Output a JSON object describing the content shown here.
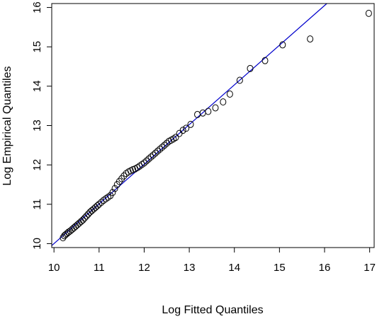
{
  "chart_data": {
    "type": "scatter",
    "title": "",
    "xlabel": "Log Fitted Quantiles",
    "ylabel": "Log Empirical Quantiles",
    "xlim": [
      9.95,
      17.1
    ],
    "ylim": [
      9.9,
      16.1
    ],
    "x_ticks": [
      10,
      11,
      12,
      13,
      14,
      15,
      16,
      17
    ],
    "y_ticks": [
      10,
      11,
      12,
      13,
      14,
      15,
      16
    ],
    "grid": false,
    "legend": "none",
    "reference_line": {
      "x": [
        9.95,
        16.05
      ],
      "y": [
        9.95,
        16.1
      ],
      "color": "#0000cc"
    },
    "point_color": "#000000",
    "points": [
      [
        10.2,
        10.15
      ],
      [
        10.23,
        10.2
      ],
      [
        10.26,
        10.23
      ],
      [
        10.29,
        10.26
      ],
      [
        10.32,
        10.29
      ],
      [
        10.36,
        10.32
      ],
      [
        10.4,
        10.36
      ],
      [
        10.44,
        10.4
      ],
      [
        10.48,
        10.44
      ],
      [
        10.52,
        10.48
      ],
      [
        10.56,
        10.52
      ],
      [
        10.6,
        10.56
      ],
      [
        10.64,
        10.6
      ],
      [
        10.68,
        10.65
      ],
      [
        10.72,
        10.7
      ],
      [
        10.76,
        10.75
      ],
      [
        10.8,
        10.8
      ],
      [
        10.84,
        10.84
      ],
      [
        10.88,
        10.88
      ],
      [
        10.92,
        10.92
      ],
      [
        10.96,
        10.96
      ],
      [
        11.0,
        11.0
      ],
      [
        11.05,
        11.05
      ],
      [
        11.1,
        11.1
      ],
      [
        11.15,
        11.14
      ],
      [
        11.2,
        11.18
      ],
      [
        11.25,
        11.22
      ],
      [
        11.3,
        11.3
      ],
      [
        11.35,
        11.4
      ],
      [
        11.4,
        11.5
      ],
      [
        11.45,
        11.58
      ],
      [
        11.5,
        11.65
      ],
      [
        11.55,
        11.72
      ],
      [
        11.6,
        11.78
      ],
      [
        11.65,
        11.82
      ],
      [
        11.7,
        11.85
      ],
      [
        11.75,
        11.88
      ],
      [
        11.8,
        11.9
      ],
      [
        11.85,
        11.93
      ],
      [
        11.9,
        11.97
      ],
      [
        11.95,
        12.01
      ],
      [
        12.0,
        12.05
      ],
      [
        12.05,
        12.1
      ],
      [
        12.1,
        12.15
      ],
      [
        12.15,
        12.2
      ],
      [
        12.2,
        12.25
      ],
      [
        12.25,
        12.3
      ],
      [
        12.3,
        12.35
      ],
      [
        12.35,
        12.4
      ],
      [
        12.4,
        12.45
      ],
      [
        12.45,
        12.5
      ],
      [
        12.5,
        12.55
      ],
      [
        12.55,
        12.6
      ],
      [
        12.6,
        12.63
      ],
      [
        12.65,
        12.66
      ],
      [
        12.7,
        12.7
      ],
      [
        12.78,
        12.8
      ],
      [
        12.86,
        12.88
      ],
      [
        12.93,
        12.93
      ],
      [
        13.03,
        13.03
      ],
      [
        13.18,
        13.28
      ],
      [
        13.3,
        13.32
      ],
      [
        13.42,
        13.36
      ],
      [
        13.58,
        13.45
      ],
      [
        13.75,
        13.6
      ],
      [
        13.9,
        13.8
      ],
      [
        14.12,
        14.15
      ],
      [
        14.35,
        14.45
      ],
      [
        14.68,
        14.65
      ],
      [
        15.07,
        15.05
      ],
      [
        15.68,
        15.2
      ],
      [
        16.98,
        15.85
      ]
    ]
  }
}
